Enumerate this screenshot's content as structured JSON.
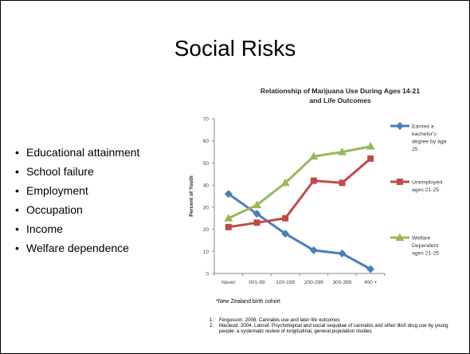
{
  "slide": {
    "title": "Social Risks",
    "bullets": [
      "Educational attainment",
      "School failure",
      "Employment",
      "Occupation",
      "Income",
      "Welfare dependence"
    ],
    "footnote": "*New Zealand birth cohort",
    "references": [
      {
        "num": "1.",
        "text": "Fergusson. 2008. Cannabis use and later life outcomes"
      },
      {
        "num": "2.",
        "text": "Macleod. 2004. Lancet. Psychological and social sequelae of cannabis and other illicit drug use by young people: a systematic review of longitudinal, general population studies"
      }
    ]
  },
  "chart_data": {
    "type": "line",
    "title": "Relationship of Marijuana Use During Ages 14-21 and Life Outcomes",
    "title_lines": [
      "Relationship of Marijuana Use During Ages 14-21",
      "and Life Outcomes"
    ],
    "xlabel": "",
    "ylabel": "Percent of Youth",
    "categories": [
      "Never",
      "001-99",
      "100-199",
      "200-299",
      "300-399",
      "400 +"
    ],
    "ylim": [
      0,
      70
    ],
    "yticks": [
      0,
      10,
      20,
      30,
      40,
      50,
      60,
      70
    ],
    "grid": false,
    "legend_position": "right",
    "series": [
      {
        "name": "Earned a bachelor's degree by age 25",
        "legend_lines": [
          "Earned a",
          "bachelor's",
          "degree by age",
          "25"
        ],
        "color": "#4a7ebb",
        "marker": "diamond",
        "values": [
          36,
          27,
          18,
          10.5,
          9,
          2
        ]
      },
      {
        "name": "Unemployed ages 21-25",
        "legend_lines": [
          "Unemployed",
          "ages 21-25"
        ],
        "color": "#be4b48",
        "marker": "square",
        "values": [
          21,
          23,
          25,
          42,
          41,
          52
        ]
      },
      {
        "name": "Welfare Dependent ages 21-25",
        "legend_lines": [
          "Welfare",
          "Dependent",
          "ages 21-25"
        ],
        "color": "#98b954",
        "marker": "triangle",
        "values": [
          25,
          31,
          41,
          53,
          55,
          57.5
        ]
      }
    ]
  }
}
